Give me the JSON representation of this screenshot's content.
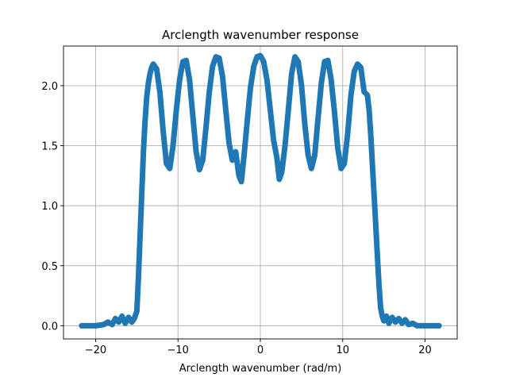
{
  "chart_data": {
    "type": "line",
    "title": "Arclength wavenumber response",
    "xlabel": "Arclength wavenumber (rad/m)",
    "ylabel": "",
    "xlim": [
      -23.9,
      23.9
    ],
    "ylim": [
      -0.11,
      2.33
    ],
    "xticks": [
      -20,
      -10,
      0,
      10,
      20
    ],
    "xtick_labels": [
      "−20",
      "−10",
      "0",
      "10",
      "20"
    ],
    "yticks": [
      0.0,
      0.5,
      1.0,
      1.5,
      2.0
    ],
    "ytick_labels": [
      "0.0",
      "0.5",
      "1.0",
      "1.5",
      "2.0"
    ],
    "grid": true,
    "legend": "none",
    "color": "#1f77b4",
    "series": [
      {
        "x": [
          -21.7,
          -20.0,
          -19.0,
          -18.5,
          -18.0,
          -17.6,
          -17.2,
          -16.8,
          -16.4,
          -16.0,
          -15.6,
          -15.3,
          -15.0,
          -14.8,
          -14.6,
          -14.4,
          -14.2,
          -14.0,
          -13.8,
          -13.6,
          -13.4,
          -13.2,
          -13.0,
          -12.6,
          -12.2,
          -11.8,
          -11.4,
          -11.0,
          -10.6,
          -10.2,
          -9.8,
          -9.4,
          -9.0,
          -8.6,
          -8.2,
          -7.8,
          -7.4,
          -7.0,
          -6.6,
          -6.2,
          -5.8,
          -5.4,
          -5.0,
          -4.6,
          -4.2,
          -3.8,
          -3.4,
          -3.0,
          -2.6,
          -2.3,
          -2.0,
          -1.6,
          -1.2,
          -0.8,
          -0.4,
          0.0,
          0.4,
          0.8,
          1.2,
          1.6,
          2.0,
          2.3,
          2.6,
          3.0,
          3.4,
          3.8,
          4.2,
          4.6,
          5.0,
          5.4,
          5.8,
          6.2,
          6.6,
          7.0,
          7.4,
          7.8,
          8.2,
          8.6,
          9.0,
          9.4,
          9.8,
          10.2,
          10.6,
          11.0,
          11.4,
          11.8,
          12.2,
          12.6,
          13.0,
          13.2,
          13.4,
          13.6,
          13.8,
          14.0,
          14.2,
          14.4,
          14.6,
          14.8,
          15.0,
          15.3,
          15.6,
          16.0,
          16.4,
          16.8,
          17.2,
          17.6,
          18.0,
          18.5,
          19.0,
          20.0,
          21.7
        ],
        "y": [
          0.0,
          0.0,
          0.01,
          0.03,
          0.01,
          0.06,
          0.03,
          0.08,
          0.02,
          0.07,
          0.03,
          0.06,
          0.12,
          0.4,
          0.75,
          1.1,
          1.45,
          1.7,
          1.9,
          2.02,
          2.1,
          2.15,
          2.18,
          2.14,
          1.95,
          1.62,
          1.35,
          1.31,
          1.5,
          1.8,
          2.05,
          2.2,
          2.21,
          2.05,
          1.75,
          1.45,
          1.3,
          1.38,
          1.65,
          1.95,
          2.16,
          2.24,
          2.23,
          2.08,
          1.8,
          1.52,
          1.38,
          1.45,
          1.25,
          1.2,
          1.4,
          1.7,
          1.98,
          2.16,
          2.24,
          2.25,
          2.2,
          2.05,
          1.8,
          1.55,
          1.4,
          1.22,
          1.28,
          1.5,
          1.8,
          2.1,
          2.24,
          2.2,
          2.0,
          1.68,
          1.42,
          1.31,
          1.42,
          1.72,
          2.02,
          2.2,
          2.21,
          2.05,
          1.78,
          1.48,
          1.31,
          1.35,
          1.6,
          1.92,
          2.12,
          2.18,
          2.15,
          1.95,
          1.92,
          1.8,
          1.6,
          1.35,
          1.1,
          0.85,
          0.6,
          0.35,
          0.15,
          0.08,
          0.04,
          0.08,
          0.02,
          0.07,
          0.03,
          0.06,
          0.02,
          0.05,
          0.01,
          0.02,
          0.0,
          0.0,
          0.0
        ]
      }
    ]
  }
}
